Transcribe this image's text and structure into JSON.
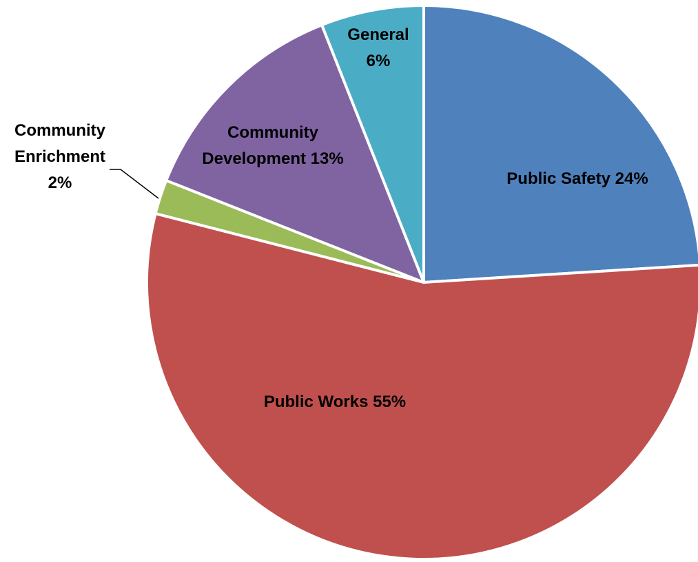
{
  "chart_data": {
    "type": "pie",
    "slices": [
      {
        "key": "public-safety",
        "name": "Public Safety",
        "value": 24,
        "label_lines": [
          "Public Safety 24%"
        ],
        "color": "#4F81BD"
      },
      {
        "key": "public-works",
        "name": "Public Works",
        "value": 55,
        "label_lines": [
          "Public Works 55%"
        ],
        "color": "#C0504D"
      },
      {
        "key": "community-enrichment",
        "name": "Community Enrichment",
        "value": 2,
        "label_lines": [
          "Community",
          "Enrichment",
          "2%"
        ],
        "color": "#9BBB59"
      },
      {
        "key": "community-development",
        "name": "Community Development",
        "value": 13,
        "label_lines": [
          "Community",
          "Development 13%"
        ],
        "color": "#8064A2"
      },
      {
        "key": "general",
        "name": "General",
        "value": 6,
        "label_lines": [
          "General",
          "6%"
        ],
        "color": "#4BACC6"
      }
    ],
    "unit": "%",
    "start_angle_deg": 0,
    "direction": "clockwise",
    "legend": "none"
  }
}
